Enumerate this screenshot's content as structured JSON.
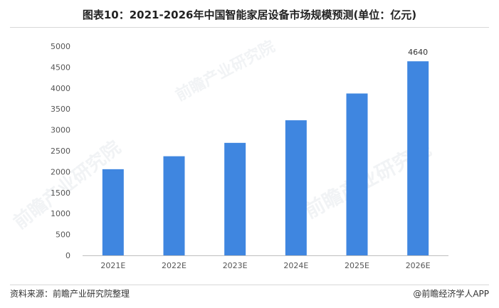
{
  "title": "图表10：2021-2026年中国智能家居设备市场规模预测(单位：亿元)",
  "source": "资料来源：前瞻产业研究院整理",
  "brand": "@前瞻经济学人APP",
  "watermark": "前瞻产业研究院",
  "colors": {
    "bar": "#3f86e0",
    "axis": "#bfbfbf",
    "text": "#555555"
  },
  "chart_data": {
    "type": "bar",
    "categories": [
      "2021E",
      "2022E",
      "2023E",
      "2024E",
      "2025E",
      "2026E"
    ],
    "values": [
      2060,
      2370,
      2690,
      3230,
      3870,
      4640
    ],
    "data_labels": [
      null,
      null,
      null,
      null,
      null,
      "4640"
    ],
    "title": "图表10：2021-2026年中国智能家居设备市场规模预测(单位：亿元)",
    "xlabel": "",
    "ylabel": "",
    "ylim": [
      0,
      5000
    ],
    "yticks": [
      0,
      500,
      1000,
      1500,
      2000,
      2500,
      3000,
      3500,
      4000,
      4500,
      5000
    ],
    "grid": false,
    "legend": "none"
  }
}
